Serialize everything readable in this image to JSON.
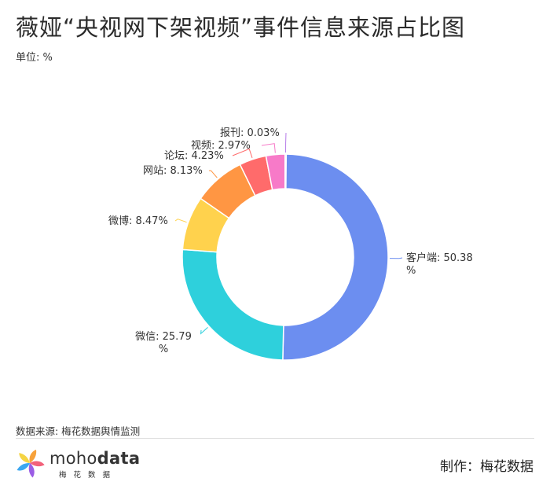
{
  "title": "薇娅“央视网下架视频”事件信息来源占比图",
  "unit_label": "单位: %",
  "footer": {
    "source": "数据来源: 梅花数据舆情监测",
    "logo_word_light": "moho",
    "logo_word_bold": "data",
    "logo_sub": "梅花数据",
    "maker": "制作：梅花数据"
  },
  "chart_data": {
    "type": "pie",
    "donut": true,
    "title": "薇娅“央视网下架视频”事件信息来源占比图",
    "unit": "%",
    "legend": "none",
    "slices": [
      {
        "name": "客户端",
        "value": 50.38,
        "label": "客户端: 50.38%",
        "color": "#6C8EF0"
      },
      {
        "name": "微信",
        "value": 25.79,
        "label": "微信: 25.79%",
        "color": "#2ED0DC"
      },
      {
        "name": "微博",
        "value": 8.47,
        "label": "微博: 8.47%",
        "color": "#FFD24D"
      },
      {
        "name": "网站",
        "value": 8.13,
        "label": "网站: 8.13%",
        "color": "#FF9643"
      },
      {
        "name": "论坛",
        "value": 4.23,
        "label": "论坛: 4.23%",
        "color": "#FF6B6B"
      },
      {
        "name": "视频",
        "value": 2.97,
        "label": "视频: 2.97%",
        "color": "#F77AC8"
      },
      {
        "name": "报刊",
        "value": 0.03,
        "label": "报刊: 0.03%",
        "color": "#B57BE8"
      }
    ]
  }
}
